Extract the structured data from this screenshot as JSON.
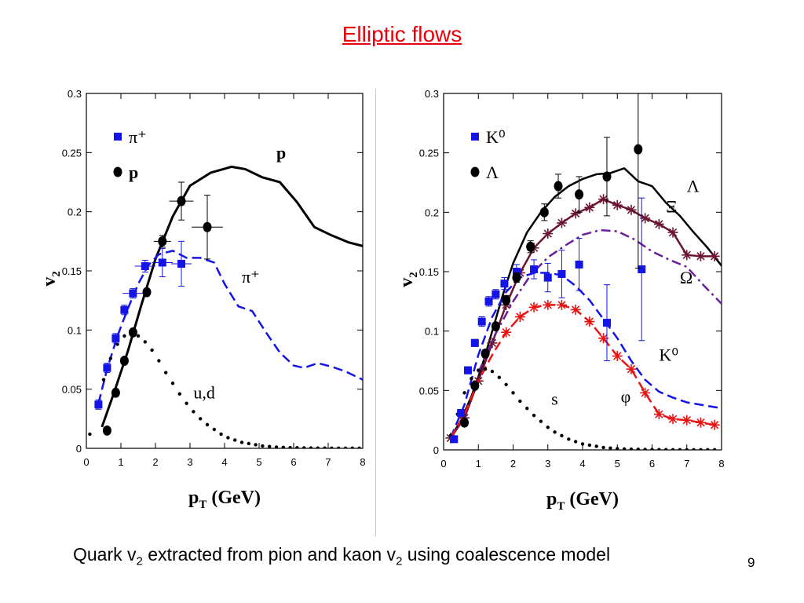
{
  "slide": {
    "title": "Elliptic flows",
    "caption_pre": "Quark v",
    "caption_sub1": "2",
    "caption_mid": " extracted from pion and kaon v",
    "caption_sub2": "2",
    "caption_post": " using coalescence model",
    "page_number": "9"
  },
  "chart_data": [
    {
      "type": "scatter",
      "xlabel": "p_T (GeV)",
      "ylabel": "v_2",
      "xlim": [
        0,
        8
      ],
      "ylim": [
        0,
        0.3
      ],
      "xticks": [
        "0",
        "1",
        "2",
        "3",
        "4",
        "5",
        "6",
        "7",
        "8"
      ],
      "yticks": [
        "0",
        "0.05",
        "0.1",
        "0.15",
        "0.2",
        "0.25",
        "0.3"
      ],
      "legend_position": "top-left",
      "legend": [
        {
          "label": "π⁺",
          "marker": "square",
          "color": "#1414e6"
        },
        {
          "label": "p",
          "marker": "circle",
          "color": "#000000"
        }
      ],
      "series": [
        {
          "name": "π⁺",
          "kind": "points",
          "marker": "square",
          "color": "#1414e6",
          "x": [
            0.35,
            0.6,
            0.85,
            1.1,
            1.35,
            1.7,
            2.2,
            2.75
          ],
          "y": [
            0.037,
            0.068,
            0.093,
            0.117,
            0.131,
            0.154,
            0.157,
            0.156
          ],
          "yerr": [
            0.004,
            0.004,
            0.004,
            0.004,
            0.004,
            0.005,
            0.012,
            0.019
          ],
          "xerr": [
            0,
            0,
            0,
            0,
            0.3,
            0.3,
            0.3,
            0.3
          ]
        },
        {
          "name": "p",
          "kind": "points",
          "marker": "circle",
          "color": "#000000",
          "x": [
            0.6,
            0.85,
            1.1,
            1.35,
            1.75,
            2.2,
            2.75,
            3.5
          ],
          "y": [
            0.015,
            0.047,
            0.074,
            0.098,
            0.132,
            0.175,
            0.209,
            0.187
          ],
          "yerr": [
            0,
            0,
            0,
            0,
            0,
            0.005,
            0.016,
            0.027
          ],
          "xerr": [
            0,
            0,
            0,
            0,
            0,
            0.25,
            0.35,
            0.45
          ]
        },
        {
          "name": "p",
          "kind": "line",
          "dash": "solid",
          "color": "#000000",
          "width": 3,
          "x": [
            0.45,
            0.8,
            1.2,
            1.6,
            2.0,
            2.5,
            3.0,
            3.6,
            4.2,
            4.6,
            5.1,
            5.6,
            6.1,
            6.6,
            7.1,
            7.6,
            8.0
          ],
          "y": [
            0.018,
            0.047,
            0.082,
            0.122,
            0.16,
            0.196,
            0.222,
            0.233,
            0.238,
            0.236,
            0.229,
            0.225,
            0.208,
            0.187,
            0.18,
            0.174,
            0.171
          ]
        },
        {
          "name": "π⁺",
          "kind": "line",
          "dash": "dashed",
          "color": "#1414e6",
          "width": 2.5,
          "x": [
            0.35,
            0.6,
            0.9,
            1.2,
            1.5,
            1.8,
            2.1,
            2.5,
            2.9,
            3.3,
            3.7,
            4.0,
            4.4,
            4.8,
            5.2,
            5.6,
            6.0,
            6.3,
            6.7,
            7.1,
            7.5,
            8.0
          ],
          "y": [
            0.038,
            0.067,
            0.095,
            0.118,
            0.139,
            0.155,
            0.164,
            0.167,
            0.161,
            0.161,
            0.157,
            0.139,
            0.12,
            0.116,
            0.098,
            0.081,
            0.07,
            0.068,
            0.072,
            0.069,
            0.065,
            0.058
          ]
        },
        {
          "name": "u,d",
          "kind": "dots",
          "color": "#000000",
          "x": [
            0.1,
            0.3,
            0.5,
            0.7,
            0.9,
            1.1,
            1.3,
            1.5,
            1.7,
            1.9,
            2.1,
            2.3,
            2.5,
            2.7,
            2.9,
            3.1,
            3.3,
            3.5,
            3.7,
            3.9,
            4.1,
            4.3,
            4.5,
            4.7,
            4.9,
            5.1,
            5.3,
            5.5,
            5.7,
            5.9,
            6.1,
            6.3,
            6.5,
            6.7,
            6.9,
            7.1,
            7.3,
            7.5,
            7.7,
            7.9
          ],
          "y": [
            0.012,
            0.035,
            0.058,
            0.076,
            0.088,
            0.095,
            0.097,
            0.095,
            0.09,
            0.083,
            0.074,
            0.064,
            0.055,
            0.046,
            0.038,
            0.031,
            0.025,
            0.02,
            0.016,
            0.012,
            0.009,
            0.007,
            0.005,
            0.004,
            0.003,
            0.002,
            0.0015,
            0.001,
            0.0008,
            0.0006,
            0.0005,
            0.0004,
            0.0003,
            0.0002,
            0.0002,
            0.0001,
            0.0001,
            0.0001,
            0.0001,
            0.0001
          ]
        }
      ],
      "annotations": [
        {
          "text": "p",
          "x": 5.5,
          "y": 0.245,
          "color": "#000000",
          "bold": true
        },
        {
          "text": "π⁺",
          "x": 4.5,
          "y": 0.14,
          "color": "#000000"
        },
        {
          "text": "u,d",
          "x": 3.1,
          "y": 0.042,
          "color": "#000000"
        }
      ]
    },
    {
      "type": "scatter",
      "xlabel": "p_T (GeV)",
      "ylabel": "v_2",
      "xlim": [
        0,
        8
      ],
      "ylim": [
        0,
        0.3
      ],
      "xticks": [
        "0",
        "1",
        "2",
        "3",
        "4",
        "5",
        "6",
        "7",
        "8"
      ],
      "yticks": [
        "0",
        "0.05",
        "0.1",
        "0.15",
        "0.2",
        "0.25",
        "0.3"
      ],
      "legend_position": "top-left",
      "legend": [
        {
          "label": "K⁰",
          "marker": "square",
          "color": "#1414e6"
        },
        {
          "label": "Λ",
          "marker": "circle",
          "color": "#000000"
        }
      ],
      "series": [
        {
          "name": "Λ",
          "kind": "line",
          "dash": "solid",
          "color": "#000000",
          "width": 2.5,
          "x": [
            0.2,
            0.5,
            0.8,
            1.1,
            1.4,
            1.7,
            2.0,
            2.4,
            2.8,
            3.2,
            3.6,
            4.0,
            4.4,
            4.8,
            5.2,
            5.6,
            6.0,
            6.4,
            6.8,
            7.2,
            7.6,
            8.0
          ],
          "y": [
            0.01,
            0.025,
            0.045,
            0.07,
            0.1,
            0.13,
            0.157,
            0.183,
            0.2,
            0.213,
            0.222,
            0.228,
            0.232,
            0.233,
            0.237,
            0.226,
            0.222,
            0.208,
            0.197,
            0.183,
            0.17,
            0.155
          ]
        },
        {
          "name": "Ξ",
          "kind": "line",
          "dash": "solid",
          "color": "#6b1535",
          "width": 2.5,
          "x": [
            0.2,
            0.6,
            1.0,
            1.4,
            1.8,
            2.2,
            2.6,
            3.0,
            3.4,
            3.8,
            4.2,
            4.6,
            5.0,
            5.4,
            5.8,
            6.2,
            6.6,
            7.0,
            7.4,
            7.8
          ],
          "y": [
            0.01,
            0.027,
            0.058,
            0.09,
            0.122,
            0.149,
            0.17,
            0.182,
            0.191,
            0.199,
            0.204,
            0.211,
            0.206,
            0.202,
            0.195,
            0.19,
            0.183,
            0.164,
            0.163,
            0.163
          ]
        },
        {
          "name": "Ξ",
          "kind": "stars",
          "color": "#6b1535",
          "x": [
            0.2,
            0.6,
            1.0,
            1.4,
            1.8,
            2.2,
            2.6,
            3.0,
            3.4,
            3.8,
            4.2,
            4.6,
            5.0,
            5.4,
            5.8,
            6.2,
            6.6,
            7.0,
            7.4,
            7.8
          ],
          "y": [
            0.01,
            0.027,
            0.058,
            0.09,
            0.122,
            0.149,
            0.17,
            0.182,
            0.191,
            0.199,
            0.204,
            0.211,
            0.206,
            0.202,
            0.195,
            0.19,
            0.183,
            0.164,
            0.163,
            0.163
          ]
        },
        {
          "name": "Ω",
          "kind": "line",
          "dash": "dashdot",
          "color": "#6a1f9a",
          "width": 2.5,
          "x": [
            1.0,
            1.5,
            2.0,
            2.5,
            3.0,
            3.5,
            4.0,
            4.5,
            5.0,
            5.5,
            6.0,
            6.5,
            7.0,
            7.5,
            8.0
          ],
          "y": [
            0.065,
            0.098,
            0.125,
            0.147,
            0.162,
            0.172,
            0.181,
            0.185,
            0.184,
            0.177,
            0.167,
            0.16,
            0.154,
            0.138,
            0.123
          ]
        },
        {
          "name": "K⁰",
          "kind": "line",
          "dash": "dashed",
          "color": "#1414e6",
          "width": 2.5,
          "x": [
            0.2,
            0.6,
            1.0,
            1.4,
            1.8,
            2.2,
            2.6,
            3.0,
            3.4,
            3.8,
            4.2,
            4.6,
            5.0,
            5.4,
            5.8,
            6.2,
            6.6,
            7.0,
            7.4,
            7.8,
            8.0
          ],
          "y": [
            0.01,
            0.038,
            0.08,
            0.112,
            0.133,
            0.145,
            0.149,
            0.149,
            0.147,
            0.138,
            0.126,
            0.11,
            0.094,
            0.075,
            0.059,
            0.049,
            0.044,
            0.04,
            0.038,
            0.036,
            0.035
          ]
        },
        {
          "name": "φ",
          "kind": "line",
          "dash": "dashed",
          "color": "#e81414",
          "width": 2.5,
          "x": [
            0.2,
            0.6,
            1.0,
            1.4,
            1.8,
            2.2,
            2.6,
            3.0,
            3.4,
            3.8,
            4.2,
            4.6,
            5.0,
            5.4,
            5.8,
            6.2,
            6.6,
            7.0,
            7.4,
            7.8
          ],
          "y": [
            0.01,
            0.03,
            0.058,
            0.08,
            0.099,
            0.112,
            0.12,
            0.122,
            0.122,
            0.118,
            0.108,
            0.094,
            0.079,
            0.068,
            0.048,
            0.03,
            0.026,
            0.025,
            0.023,
            0.021
          ]
        },
        {
          "name": "φ",
          "kind": "stars",
          "color": "#e81414",
          "x": [
            1.8,
            2.2,
            2.6,
            3.0,
            3.4,
            3.8,
            4.2,
            4.6,
            5.0,
            5.4,
            5.8,
            6.2,
            6.6,
            7.0,
            7.4,
            7.8
          ],
          "y": [
            0.099,
            0.112,
            0.12,
            0.122,
            0.122,
            0.118,
            0.108,
            0.094,
            0.079,
            0.068,
            0.048,
            0.03,
            0.026,
            0.025,
            0.023,
            0.021
          ]
        },
        {
          "name": "s",
          "kind": "dots",
          "color": "#000000",
          "x": [
            0.2,
            0.4,
            0.6,
            0.8,
            1.0,
            1.2,
            1.4,
            1.6,
            1.8,
            2.0,
            2.2,
            2.4,
            2.6,
            2.8,
            3.0,
            3.2,
            3.4,
            3.6,
            3.8,
            4.0,
            4.2,
            4.4,
            4.6,
            4.8,
            5.0,
            5.2,
            5.4,
            5.6,
            5.8,
            6.0,
            6.2,
            6.4,
            6.6,
            6.8,
            7.0,
            7.2,
            7.4,
            7.6,
            7.8
          ],
          "y": [
            0.012,
            0.03,
            0.048,
            0.06,
            0.067,
            0.068,
            0.066,
            0.061,
            0.055,
            0.048,
            0.041,
            0.035,
            0.029,
            0.024,
            0.019,
            0.015,
            0.012,
            0.009,
            0.007,
            0.005,
            0.004,
            0.003,
            0.002,
            0.0015,
            0.001,
            0.0008,
            0.0006,
            0.0005,
            0.0004,
            0.0003,
            0.0002,
            0.0002,
            0.0001,
            0.0001,
            0.0001,
            0.0001,
            0.0001,
            0.0001,
            0.0001
          ]
        },
        {
          "name": "K⁰",
          "kind": "points",
          "marker": "square",
          "color": "#1414e6",
          "x": [
            0.3,
            0.5,
            0.7,
            0.9,
            1.1,
            1.3,
            1.5,
            1.75,
            2.1,
            2.6,
            3.0,
            3.4,
            3.9,
            4.7,
            5.7
          ],
          "y": [
            0.009,
            0.031,
            0.067,
            0.09,
            0.108,
            0.125,
            0.131,
            0.14,
            0.15,
            0.152,
            0.145,
            0.148,
            0.156,
            0.107,
            0.152
          ],
          "yerr": [
            0.002,
            0.003,
            0.003,
            0.003,
            0.004,
            0.004,
            0.004,
            0.005,
            0.006,
            0.008,
            0.012,
            0.02,
            0.022,
            0.032,
            0.06
          ],
          "xerr": [
            0,
            0,
            0,
            0,
            0,
            0,
            0,
            0,
            0,
            0,
            0,
            0,
            0,
            0,
            0
          ]
        },
        {
          "name": "Λ",
          "kind": "points",
          "marker": "circle",
          "color": "#000000",
          "x": [
            0.6,
            0.9,
            1.2,
            1.5,
            1.8,
            2.1,
            2.5,
            2.9,
            3.3,
            3.9,
            4.7,
            5.6
          ],
          "y": [
            0.023,
            0.054,
            0.081,
            0.104,
            0.126,
            0.145,
            0.171,
            0.2,
            0.222,
            0.215,
            0.23,
            0.253
          ],
          "yerr": [
            0.002,
            0.002,
            0.003,
            0.003,
            0.004,
            0.004,
            0.005,
            0.007,
            0.01,
            0.015,
            0.033,
            0.1
          ],
          "xerr": [
            0,
            0,
            0,
            0,
            0,
            0,
            0,
            0,
            0,
            0,
            0,
            0
          ]
        }
      ],
      "annotations": [
        {
          "text": "Λ",
          "x": 7.0,
          "y": 0.217,
          "color": "#000000"
        },
        {
          "text": "Ξ",
          "x": 6.4,
          "y": 0.2,
          "color": "#000000"
        },
        {
          "text": "Ω",
          "x": 6.8,
          "y": 0.14,
          "color": "#000000"
        },
        {
          "text": "K⁰",
          "x": 6.2,
          "y": 0.075,
          "color": "#000000"
        },
        {
          "text": "φ",
          "x": 5.1,
          "y": 0.04,
          "color": "#000000"
        },
        {
          "text": "s",
          "x": 3.1,
          "y": 0.038,
          "color": "#000000"
        }
      ]
    }
  ]
}
